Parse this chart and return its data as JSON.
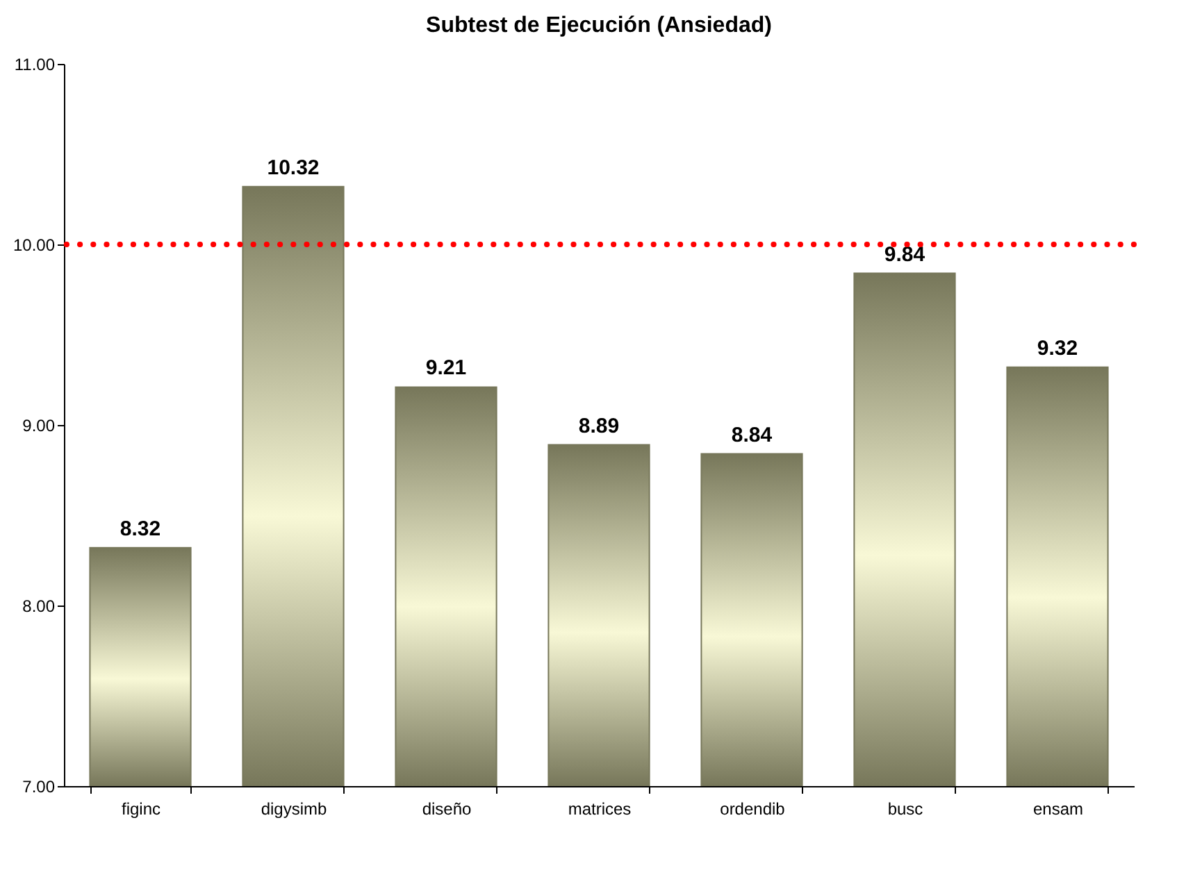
{
  "chart_data": {
    "type": "bar",
    "title": "Subtest de Ejecución (Ansiedad)",
    "categories": [
      "figinc",
      "digysimb",
      "diseño",
      "matrices",
      "ordendib",
      "busc",
      "ensam"
    ],
    "values": [
      8.32,
      10.32,
      9.21,
      8.89,
      8.84,
      9.84,
      9.32
    ],
    "color": "#77775a",
    "ylim": [
      7,
      11
    ],
    "yticks": [
      {
        "value": 7,
        "label": "7.00"
      },
      {
        "value": 8,
        "label": "8.00"
      },
      {
        "value": 9,
        "label": "9.00"
      },
      {
        "value": 10,
        "label": "10.00"
      },
      {
        "value": 11,
        "label": "11.00"
      }
    ],
    "ref_lines": [
      {
        "axis": "y",
        "value": 10,
        "color": "#ff0000",
        "line_style": "dotted"
      }
    ],
    "data_labels": true,
    "grid": false
  }
}
